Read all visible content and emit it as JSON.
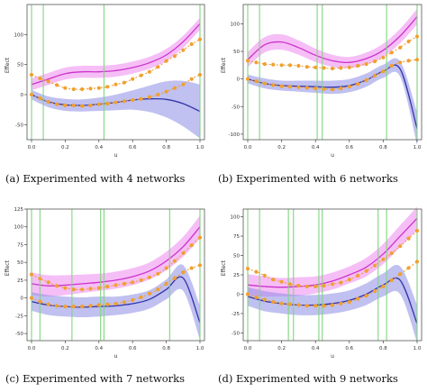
{
  "figure": {
    "captions": [
      "(a)  Experimented with 4 networks",
      "(b)  Experimented with 6 networks",
      "(c)  Experimented with 7 networks",
      "(d)  Experimented with 9 networks"
    ]
  },
  "colors": {
    "magenta_line": "#cc33cc",
    "magenta_band": "#ee88ee",
    "blue_line": "#3333aa",
    "blue_band": "#8c8ce6",
    "orange": "#f0a030",
    "vline": "#7fd67f"
  },
  "chart_data": [
    {
      "type": "line",
      "panel": "a",
      "xlabel": "u",
      "ylabel": "Effect",
      "xlim": [
        0.0,
        1.0
      ],
      "ylim": [
        -75,
        150
      ],
      "xticks": [
        0.0,
        0.2,
        0.4,
        0.6,
        0.8,
        1.0
      ],
      "xtick_labels": [
        "0.0",
        "0.2",
        "0.4",
        "0.6",
        "0.8",
        "1.0"
      ],
      "yticks": [
        -50,
        0,
        50,
        100
      ],
      "ytick_labels": [
        "-50",
        "0",
        "50",
        "100"
      ],
      "vlines": [
        0.0,
        0.07,
        0.43,
        1.0
      ],
      "series": [
        {
          "color": "magenta",
          "x": [
            0.0,
            0.1,
            0.2,
            0.3,
            0.4,
            0.5,
            0.6,
            0.7,
            0.8,
            0.9,
            1.0
          ],
          "values": [
            17,
            26,
            35,
            38,
            38,
            40,
            45,
            53,
            66,
            88,
            118
          ],
          "band": [
            10,
            10,
            10,
            10,
            10,
            10,
            10,
            10,
            10,
            10,
            10
          ]
        },
        {
          "color": "blue",
          "x": [
            0.0,
            0.1,
            0.2,
            0.3,
            0.4,
            0.5,
            0.6,
            0.7,
            0.8,
            0.9,
            1.0
          ],
          "values": [
            0,
            -12,
            -17,
            -18,
            -16,
            -13,
            -9,
            -7,
            -8,
            -15,
            -28
          ],
          "band": [
            8,
            9,
            10,
            10,
            11,
            13,
            16,
            22,
            30,
            38,
            45
          ]
        },
        {
          "color": "orange",
          "x": [
            0.0,
            0.05,
            0.1,
            0.15,
            0.2,
            0.25,
            0.3,
            0.35,
            0.4,
            0.45,
            0.5,
            0.55,
            0.6,
            0.65,
            0.7,
            0.75,
            0.8,
            0.85,
            0.9,
            0.95,
            1.0
          ],
          "values": [
            33,
            27,
            22,
            16,
            11,
            9,
            9,
            10,
            11,
            13,
            17,
            20,
            26,
            32,
            38,
            46,
            56,
            64,
            74,
            84,
            92
          ]
        },
        {
          "color": "orange",
          "x": [
            0.0,
            0.05,
            0.1,
            0.15,
            0.2,
            0.25,
            0.3,
            0.35,
            0.4,
            0.45,
            0.5,
            0.55,
            0.6,
            0.65,
            0.7,
            0.75,
            0.8,
            0.85,
            0.9,
            0.95,
            1.0
          ],
          "values": [
            0,
            -6,
            -12,
            -16,
            -18,
            -18,
            -19,
            -18,
            -16,
            -15,
            -13,
            -11,
            -9,
            -7,
            -4,
            0,
            5,
            11,
            17,
            26,
            33
          ]
        }
      ]
    },
    {
      "type": "line",
      "panel": "b",
      "xlabel": "u",
      "ylabel": "Effect",
      "xlim": [
        0.0,
        1.0
      ],
      "ylim": [
        -110,
        135
      ],
      "xticks": [
        0.0,
        0.2,
        0.4,
        0.6,
        0.8,
        1.0
      ],
      "xtick_labels": [
        "0.0",
        "0.2",
        "0.4",
        "0.6",
        "0.8",
        "1.0"
      ],
      "yticks": [
        -100,
        -50,
        0,
        50,
        100
      ],
      "ytick_labels": [
        "-100",
        "-50",
        "0",
        "50",
        "100"
      ],
      "vlines": [
        0.0,
        0.07,
        0.41,
        0.44,
        0.82,
        1.0
      ],
      "series": [
        {
          "color": "magenta",
          "x": [
            0.0,
            0.1,
            0.2,
            0.3,
            0.4,
            0.5,
            0.6,
            0.7,
            0.8,
            0.9,
            1.0
          ],
          "values": [
            35,
            62,
            67,
            57,
            43,
            33,
            30,
            37,
            52,
            78,
            113
          ],
          "band": [
            14,
            14,
            14,
            13,
            12,
            11,
            10,
            11,
            12,
            13,
            14
          ]
        },
        {
          "color": "blue",
          "x": [
            0.0,
            0.1,
            0.2,
            0.3,
            0.4,
            0.5,
            0.6,
            0.7,
            0.8,
            0.9,
            1.0
          ],
          "values": [
            0,
            -8,
            -12,
            -13,
            -14,
            -15,
            -12,
            -2,
            14,
            18,
            -90
          ],
          "band": [
            8,
            9,
            9,
            10,
            11,
            12,
            12,
            12,
            12,
            14,
            30
          ]
        },
        {
          "color": "orange",
          "x": [
            0.0,
            0.05,
            0.1,
            0.15,
            0.2,
            0.25,
            0.3,
            0.35,
            0.4,
            0.45,
            0.5,
            0.55,
            0.6,
            0.65,
            0.7,
            0.75,
            0.8,
            0.85,
            0.9,
            0.95,
            1.0
          ],
          "values": [
            33,
            30,
            27,
            26,
            25,
            25,
            24,
            22,
            21,
            20,
            19,
            20,
            21,
            24,
            27,
            32,
            39,
            48,
            57,
            68,
            77
          ]
        },
        {
          "color": "orange",
          "x": [
            0.0,
            0.05,
            0.1,
            0.15,
            0.2,
            0.25,
            0.3,
            0.35,
            0.4,
            0.45,
            0.5,
            0.55,
            0.6,
            0.65,
            0.7,
            0.75,
            0.8,
            0.85,
            0.9,
            0.95,
            1.0
          ],
          "values": [
            0,
            -4,
            -8,
            -11,
            -13,
            -14,
            -15,
            -16,
            -17,
            -18,
            -19,
            -17,
            -14,
            -9,
            -2,
            6,
            14,
            24,
            30,
            33,
            35
          ]
        }
      ]
    },
    {
      "type": "line",
      "panel": "c",
      "xlabel": "u",
      "ylabel": "Effect",
      "xlim": [
        0.0,
        1.0
      ],
      "ylim": [
        -60,
        125
      ],
      "xticks": [
        0.0,
        0.2,
        0.4,
        0.6,
        0.8,
        1.0
      ],
      "xtick_labels": [
        "0.0",
        "0.2",
        "0.4",
        "0.6",
        "0.8",
        "1.0"
      ],
      "yticks": [
        -50,
        -25,
        0,
        25,
        50,
        75,
        100,
        125
      ],
      "ytick_labels": [
        "-50",
        "-25",
        "0",
        "25",
        "50",
        "75",
        "100",
        "125"
      ],
      "vlines": [
        0.0,
        0.05,
        0.24,
        0.41,
        0.43,
        0.82,
        1.0
      ],
      "series": [
        {
          "color": "magenta",
          "x": [
            0.0,
            0.1,
            0.2,
            0.3,
            0.4,
            0.5,
            0.6,
            0.7,
            0.8,
            0.9,
            1.0
          ],
          "values": [
            20,
            17,
            18,
            20,
            22,
            25,
            30,
            38,
            52,
            72,
            100
          ],
          "band": [
            16,
            15,
            14,
            13,
            12,
            12,
            12,
            12,
            13,
            14,
            16
          ]
        },
        {
          "color": "blue",
          "x": [
            0.0,
            0.1,
            0.2,
            0.3,
            0.4,
            0.5,
            0.6,
            0.7,
            0.8,
            0.9,
            1.0
          ],
          "values": [
            -5,
            -10,
            -12,
            -13,
            -12,
            -11,
            -8,
            -2,
            12,
            28,
            -35
          ],
          "band": [
            13,
            14,
            14,
            14,
            14,
            13,
            13,
            13,
            14,
            18,
            24
          ]
        },
        {
          "color": "orange",
          "x": [
            0.0,
            0.05,
            0.1,
            0.15,
            0.2,
            0.25,
            0.3,
            0.35,
            0.4,
            0.45,
            0.5,
            0.55,
            0.6,
            0.65,
            0.7,
            0.75,
            0.8,
            0.85,
            0.9,
            0.95,
            1.0
          ],
          "values": [
            33,
            27,
            22,
            17,
            14,
            12,
            12,
            13,
            14,
            16,
            18,
            20,
            22,
            25,
            29,
            34,
            42,
            52,
            63,
            74,
            85
          ]
        },
        {
          "color": "orange",
          "x": [
            0.0,
            0.05,
            0.1,
            0.15,
            0.2,
            0.25,
            0.3,
            0.35,
            0.4,
            0.45,
            0.5,
            0.55,
            0.6,
            0.65,
            0.7,
            0.75,
            0.8,
            0.85,
            0.9,
            0.95,
            1.0
          ],
          "values": [
            0,
            -5,
            -9,
            -11,
            -12,
            -12,
            -12,
            -11,
            -10,
            -9,
            -8,
            -6,
            -3,
            1,
            6,
            12,
            20,
            28,
            36,
            42,
            46
          ]
        }
      ]
    },
    {
      "type": "line",
      "panel": "d",
      "xlabel": "u",
      "ylabel": "Effect",
      "xlim": [
        0.0,
        1.0
      ],
      "ylim": [
        -60,
        110
      ],
      "xticks": [
        0.0,
        0.2,
        0.4,
        0.6,
        0.8,
        1.0
      ],
      "xtick_labels": [
        "0.0",
        "0.2",
        "0.4",
        "0.6",
        "0.8",
        "1.0"
      ],
      "yticks": [
        -50,
        -25,
        0,
        25,
        50,
        75,
        100
      ],
      "ytick_labels": [
        "-50",
        "-25",
        "0",
        "25",
        "50",
        "75",
        "100"
      ],
      "vlines": [
        0.0,
        0.07,
        0.24,
        0.27,
        0.42,
        0.44,
        0.77,
        0.82,
        1.0
      ],
      "series": [
        {
          "color": "magenta",
          "x": [
            0.0,
            0.1,
            0.2,
            0.3,
            0.4,
            0.5,
            0.6,
            0.7,
            0.8,
            0.9,
            1.0
          ],
          "values": [
            12,
            10,
            9,
            10,
            12,
            17,
            25,
            35,
            52,
            75,
            98
          ],
          "band": [
            14,
            13,
            12,
            12,
            11,
            11,
            11,
            12,
            13,
            14,
            15
          ]
        },
        {
          "color": "blue",
          "x": [
            0.0,
            0.1,
            0.2,
            0.3,
            0.4,
            0.5,
            0.6,
            0.7,
            0.8,
            0.9,
            1.0
          ],
          "values": [
            -3,
            -9,
            -12,
            -14,
            -14,
            -12,
            -8,
            0,
            12,
            18,
            -38
          ],
          "band": [
            12,
            13,
            13,
            13,
            13,
            13,
            13,
            14,
            15,
            18,
            24
          ]
        },
        {
          "color": "orange",
          "x": [
            0.0,
            0.05,
            0.1,
            0.15,
            0.2,
            0.25,
            0.3,
            0.35,
            0.4,
            0.45,
            0.5,
            0.55,
            0.6,
            0.65,
            0.7,
            0.75,
            0.8,
            0.85,
            0.9,
            0.95,
            1.0
          ],
          "values": [
            33,
            29,
            24,
            19,
            16,
            13,
            11,
            10,
            10,
            11,
            13,
            15,
            19,
            24,
            30,
            37,
            45,
            53,
            62,
            72,
            82
          ]
        },
        {
          "color": "orange",
          "x": [
            0.0,
            0.05,
            0.1,
            0.15,
            0.2,
            0.25,
            0.3,
            0.35,
            0.4,
            0.45,
            0.5,
            0.55,
            0.6,
            0.65,
            0.7,
            0.75,
            0.8,
            0.85,
            0.9,
            0.95,
            1.0
          ],
          "values": [
            0,
            -4,
            -7,
            -10,
            -12,
            -13,
            -14,
            -15,
            -15,
            -15,
            -14,
            -12,
            -10,
            -6,
            -2,
            4,
            10,
            18,
            26,
            34,
            42
          ]
        }
      ]
    }
  ]
}
